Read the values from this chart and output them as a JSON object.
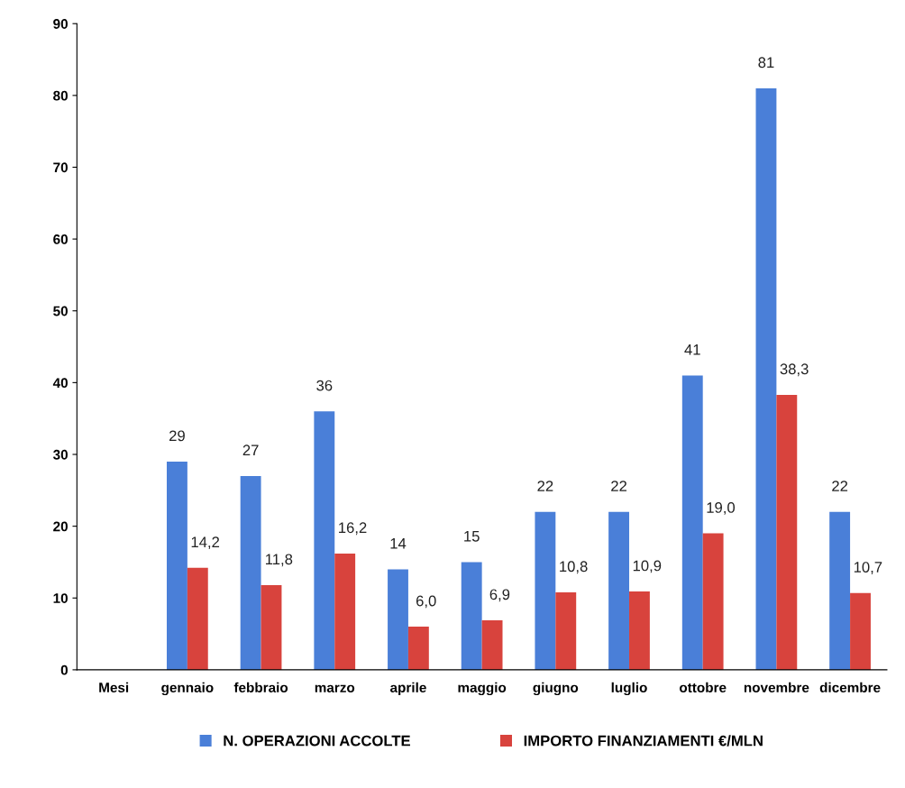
{
  "chart_data": {
    "type": "bar",
    "categories": [
      "Mesi",
      "gennaio",
      "febbraio",
      "marzo",
      "aprile",
      "maggio",
      "giugno",
      "luglio",
      "ottobre",
      "novembre",
      "dicembre"
    ],
    "series": [
      {
        "name": "N. OPERAZIONI ACCOLTE",
        "color": "#4a7fd8",
        "values": [
          null,
          29,
          27,
          36,
          14,
          15,
          22,
          22,
          41,
          81,
          22
        ],
        "value_labels": [
          null,
          "29",
          "27",
          "36",
          "14",
          "15",
          "22",
          "22",
          "41",
          "81",
          "22"
        ]
      },
      {
        "name": "IMPORTO FINANZIAMENTI €/MLN",
        "color": "#d8433d",
        "values": [
          null,
          14.2,
          11.8,
          16.2,
          6.0,
          6.9,
          10.8,
          10.9,
          19.0,
          38.3,
          10.7
        ],
        "value_labels": [
          null,
          "14,2",
          "11,8",
          "16,2",
          "6,0",
          "6,9",
          "10,8",
          "10,9",
          "19,0",
          "38,3",
          "10,7"
        ]
      }
    ],
    "ylim": [
      0,
      90
    ],
    "yticks": [
      0,
      10,
      20,
      30,
      40,
      50,
      60,
      70,
      80,
      90
    ],
    "grid": false,
    "legend": "bottom"
  }
}
